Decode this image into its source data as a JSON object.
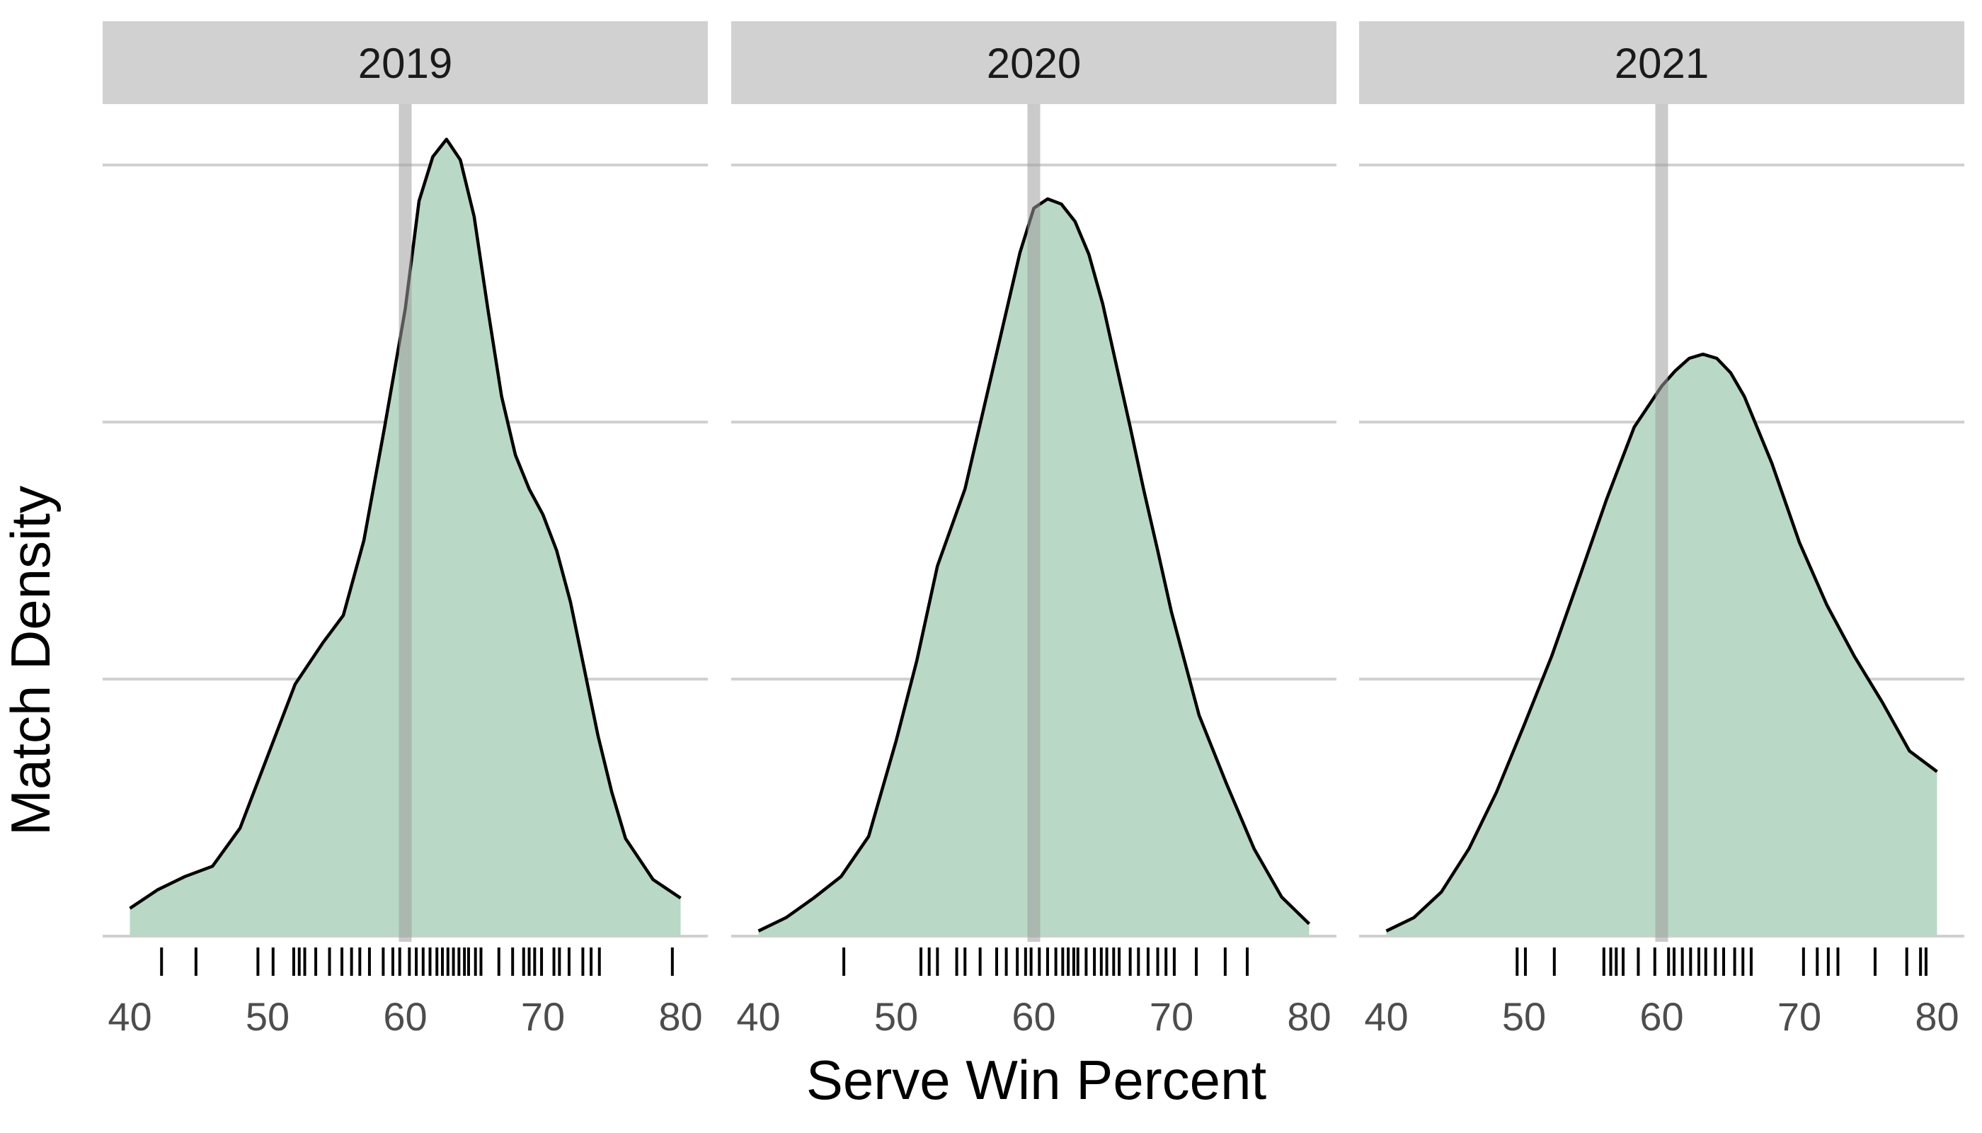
{
  "chart_data": {
    "type": "area",
    "subtype": "faceted-density-with-rug",
    "xlabel": "Serve Win Percent",
    "ylabel": "Match Density",
    "xlim": [
      40,
      80
    ],
    "xticks": [
      40,
      50,
      60,
      70,
      80
    ],
    "ylim": [
      0,
      0.0775
    ],
    "ygrid": [
      0,
      0.025,
      0.05,
      0.075
    ],
    "y_tick_labels_shown": false,
    "grid": "horizontal-major",
    "reference_line_x": 60,
    "colors": {
      "fill": "#b9d8c5",
      "line": "#000000",
      "strip": "#d1d1d1",
      "grid": "#d0d0d0",
      "reference": "#9f9f9f",
      "rug": "#000000"
    },
    "facets": [
      {
        "label": "2019",
        "density": {
          "x": [
            40,
            42,
            44,
            46,
            48,
            50,
            52,
            54,
            55.5,
            57,
            58.5,
            60,
            61,
            62,
            63,
            64,
            65,
            66,
            67,
            68,
            69,
            70,
            71,
            72,
            73,
            74,
            75,
            76,
            78,
            80
          ],
          "y": [
            0.0027,
            0.0045,
            0.0058,
            0.0068,
            0.0105,
            0.0175,
            0.0245,
            0.0285,
            0.0312,
            0.0385,
            0.0495,
            0.061,
            0.0715,
            0.0758,
            0.0775,
            0.0755,
            0.07,
            0.061,
            0.0525,
            0.0468,
            0.0435,
            0.041,
            0.0375,
            0.0325,
            0.026,
            0.0195,
            0.014,
            0.0095,
            0.0055,
            0.0037
          ]
        },
        "rug": [
          42.3,
          44.8,
          49.3,
          50.4,
          51.9,
          52.3,
          52.7,
          53.5,
          54.5,
          55.4,
          56.1,
          56.7,
          57.4,
          58.4,
          59.1,
          59.6,
          60.3,
          60.8,
          61.3,
          61.8,
          62.3,
          62.7,
          63.1,
          63.5,
          63.9,
          64.3,
          64.6,
          65.1,
          65.5,
          66.8,
          67.8,
          68.6,
          69.0,
          69.4,
          69.9,
          70.8,
          71.2,
          71.9,
          72.9,
          73.5,
          74.1,
          79.4
        ]
      },
      {
        "label": "2020",
        "density": {
          "x": [
            40,
            42,
            44,
            46,
            48,
            50,
            51.5,
            53,
            55,
            57,
            59,
            60,
            61,
            62,
            63,
            64,
            65,
            66,
            67,
            68,
            69,
            70,
            72,
            74,
            76,
            78,
            80
          ],
          "y": [
            0.0005,
            0.0018,
            0.0037,
            0.0058,
            0.0097,
            0.019,
            0.0268,
            0.036,
            0.0435,
            0.055,
            0.0665,
            0.0708,
            0.0717,
            0.0712,
            0.0695,
            0.0663,
            0.0615,
            0.0555,
            0.0495,
            0.0433,
            0.0375,
            0.0315,
            0.0215,
            0.0148,
            0.0085,
            0.0038,
            0.0012
          ]
        },
        "rug": [
          46.2,
          51.8,
          52.4,
          53.0,
          54.4,
          55.0,
          56.1,
          57.3,
          58.0,
          58.8,
          59.4,
          59.8,
          60.4,
          61.0,
          61.6,
          62.1,
          62.5,
          62.9,
          63.2,
          63.8,
          64.4,
          64.9,
          65.3,
          65.8,
          66.2,
          67.0,
          67.6,
          68.3,
          69.0,
          69.6,
          70.2,
          71.8,
          73.9,
          75.5
        ]
      },
      {
        "label": "2021",
        "density": {
          "x": [
            40,
            42,
            44,
            46,
            48,
            50,
            52,
            54,
            56,
            58,
            60,
            61,
            62,
            63,
            64,
            65,
            66,
            68,
            70,
            72,
            74,
            76,
            78,
            80
          ],
          "y": [
            0.0005,
            0.0018,
            0.0043,
            0.0085,
            0.014,
            0.0205,
            0.0272,
            0.0348,
            0.0425,
            0.0495,
            0.0535,
            0.055,
            0.0562,
            0.0566,
            0.0562,
            0.0548,
            0.0525,
            0.046,
            0.0383,
            0.0322,
            0.0272,
            0.0228,
            0.018,
            0.016
          ]
        },
        "rug": [
          49.5,
          50.1,
          52.2,
          55.8,
          56.3,
          56.7,
          57.2,
          58.3,
          59.5,
          60.5,
          60.9,
          61.5,
          62.1,
          62.7,
          63.2,
          63.9,
          64.5,
          65.3,
          65.9,
          66.5,
          70.3,
          71.3,
          72.1,
          72.8,
          75.5,
          77.8,
          78.8,
          79.2
        ]
      }
    ]
  }
}
